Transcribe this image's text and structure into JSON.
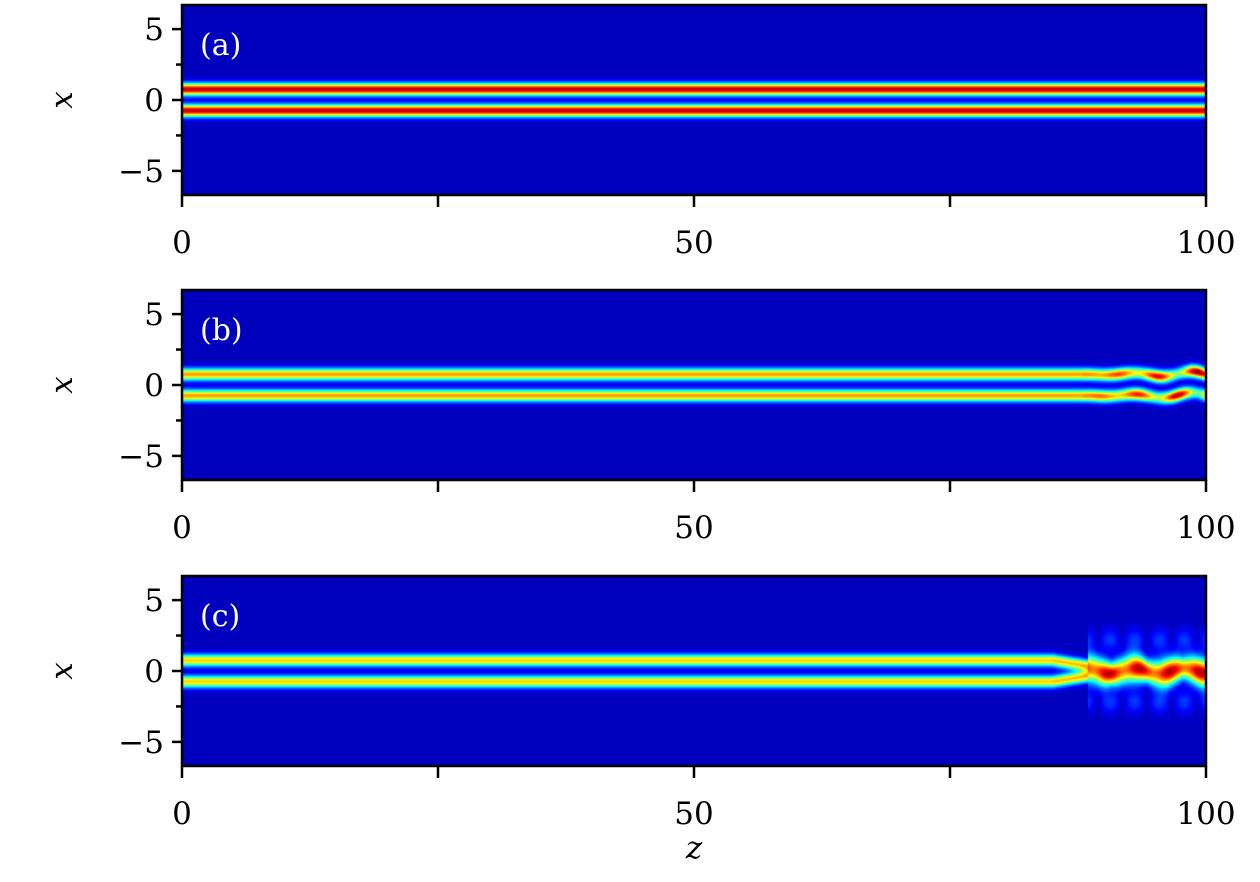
{
  "chart_data": [
    {
      "type": "heatmap",
      "panel_label": "(a)",
      "xlabel": "",
      "ylabel": "x",
      "xlim": [
        0,
        100
      ],
      "ylim": [
        -6.7,
        6.7
      ],
      "xticks": [
        0,
        25,
        50,
        75,
        100
      ],
      "xtick_labels": [
        "0",
        "",
        "50",
        "",
        "100"
      ],
      "yticks": [
        5,
        2.5,
        0,
        -2.5,
        -5
      ],
      "ytick_labels": [
        "5",
        "",
        "0",
        "",
        "−5"
      ],
      "colormap": "jet",
      "description_of_field": {
        "beam_peaks_x": [
          -0.75,
          0.75
        ],
        "peak_level": 0.95,
        "breakup_z": null
      }
    },
    {
      "type": "heatmap",
      "panel_label": "(b)",
      "xlabel": "",
      "ylabel": "x",
      "xlim": [
        0,
        100
      ],
      "ylim": [
        -6.7,
        6.7
      ],
      "xticks": [
        0,
        25,
        50,
        75,
        100
      ],
      "xtick_labels": [
        "0",
        "",
        "50",
        "",
        "100"
      ],
      "yticks": [
        5,
        2.5,
        0,
        -2.5,
        -5
      ],
      "ytick_labels": [
        "5",
        "",
        "0",
        "",
        "−5"
      ],
      "colormap": "jet",
      "description_of_field": {
        "beam_peaks_x": [
          -0.75,
          0.75
        ],
        "peak_level": 0.72,
        "breakup_z": 88
      }
    },
    {
      "type": "heatmap",
      "panel_label": "(c)",
      "xlabel": "z",
      "ylabel": "x",
      "xlim": [
        0,
        100
      ],
      "ylim": [
        -6.7,
        6.7
      ],
      "xticks": [
        0,
        25,
        50,
        75,
        100
      ],
      "xtick_labels": [
        "0",
        "",
        "50",
        "",
        "100"
      ],
      "yticks": [
        5,
        2.5,
        0,
        -2.5,
        -5
      ],
      "ytick_labels": [
        "5",
        "",
        "0",
        "",
        "−5"
      ],
      "colormap": "jet",
      "description_of_field": {
        "beam_peaks_x": [
          -0.75,
          0.75
        ],
        "peak_level": 0.66,
        "breakup_z": 85
      }
    }
  ]
}
